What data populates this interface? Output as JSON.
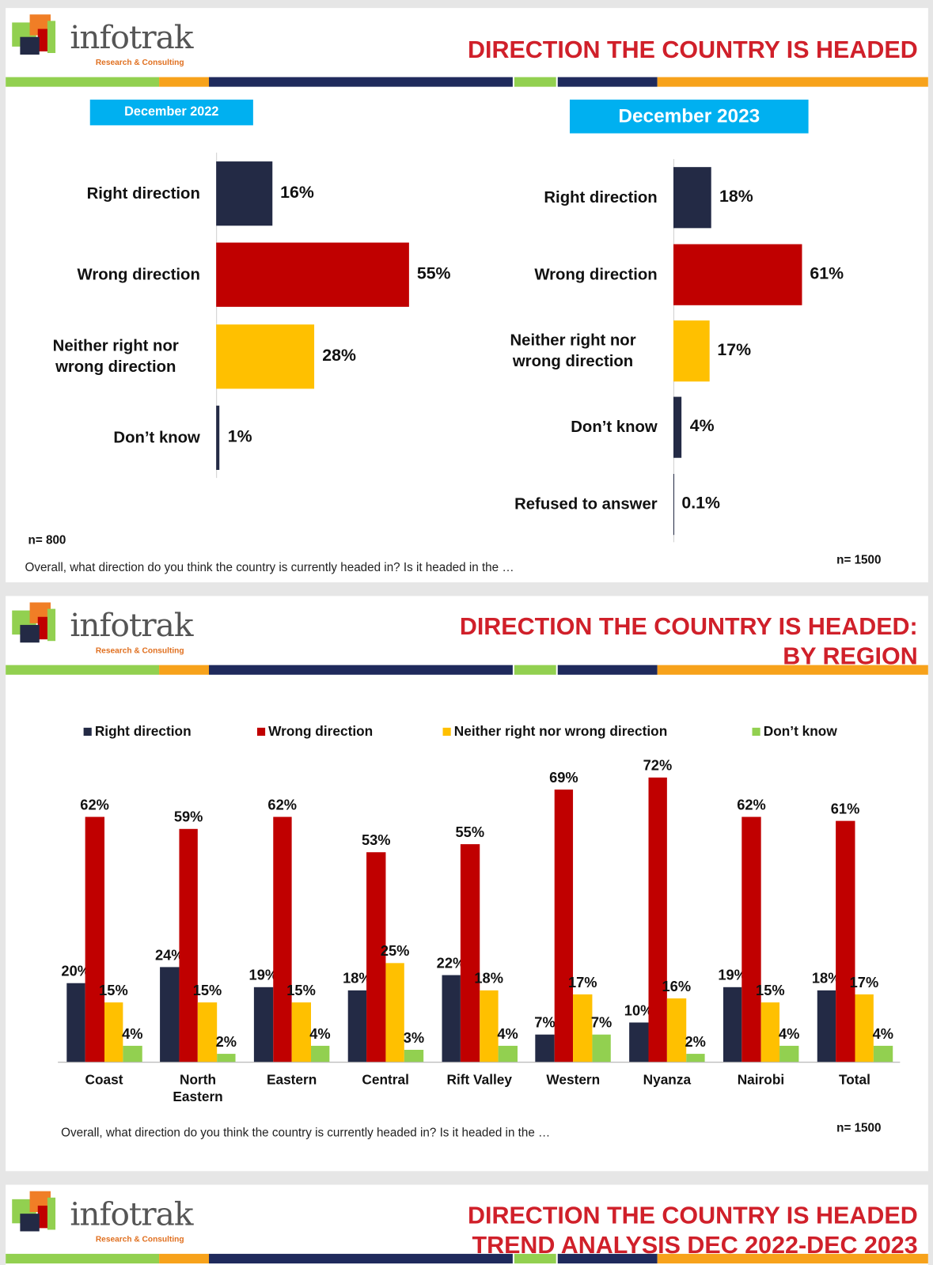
{
  "logo_text": "infotrak",
  "logo_tagline": "Research & Consulting",
  "slides": [
    {
      "title_lines": [
        "DIRECTION THE COUNTRY IS HEADED"
      ]
    },
    {
      "title_lines": [
        "DIRECTION THE COUNTRY IS HEADED:",
        "BY REGION"
      ]
    },
    {
      "title_lines": [
        "DIRECTION THE COUNTRY IS HEADED",
        "TREND ANALYSIS DEC 2022-DEC 2023"
      ]
    }
  ],
  "chart_data": [
    {
      "type": "bar",
      "horizontal": true,
      "subtitle": "December 2022",
      "categories": [
        "Right direction",
        "Wrong direction",
        "Neither right nor wrong direction",
        "Don’t know"
      ],
      "values": [
        16,
        55,
        28,
        1
      ],
      "value_labels": [
        "16%",
        "55%",
        "28%",
        "1%"
      ],
      "colors": [
        "#232a45",
        "#c00000",
        "#ffc000",
        "#232a45"
      ],
      "note": "n= 800",
      "footnote": "Overall, what direction do you think the country is currently headed in? Is it headed in the …"
    },
    {
      "type": "bar",
      "horizontal": true,
      "subtitle": "December 2023",
      "categories": [
        "Right direction",
        "Wrong direction",
        "Neither right nor wrong direction",
        "Don’t know",
        "Refused to answer"
      ],
      "values": [
        18,
        61,
        17,
        4,
        0.1
      ],
      "value_labels": [
        "18%",
        "61%",
        "17%",
        "4%",
        "0.1%"
      ],
      "colors": [
        "#232a45",
        "#c00000",
        "#ffc000",
        "#232a45",
        "#232a45"
      ],
      "note": "n= 1500"
    },
    {
      "type": "bar",
      "horizontal": false,
      "categories": [
        "Coast",
        "North Eastern",
        "Eastern",
        "Central",
        "Rift Valley",
        "Western",
        "Nyanza",
        "Nairobi",
        "Total"
      ],
      "series": [
        {
          "name": "Right direction",
          "color": "#232a45",
          "values": [
            20,
            24,
            19,
            18,
            22,
            7,
            10,
            19,
            18
          ],
          "value_labels": [
            "20%",
            "24%",
            "19%",
            "18%",
            "22%",
            "7%",
            "10%",
            "19%",
            "18%"
          ]
        },
        {
          "name": "Wrong direction",
          "color": "#c00000",
          "values": [
            62,
            59,
            62,
            53,
            55,
            69,
            72,
            62,
            61
          ],
          "value_labels": [
            "62%",
            "59%",
            "62%",
            "53%",
            "55%",
            "69%",
            "72%",
            "62%",
            "61%"
          ]
        },
        {
          "name": "Neither right nor wrong direction",
          "color": "#ffc000",
          "values": [
            15,
            15,
            15,
            25,
            18,
            17,
            16,
            15,
            17
          ],
          "value_labels": [
            "15%",
            "15%",
            "15%",
            "25%",
            "18%",
            "17%",
            "16%",
            "15%",
            "17%"
          ]
        },
        {
          "name": "Don’t know",
          "color": "#92d050",
          "values": [
            4,
            2,
            4,
            3,
            4,
            7,
            2,
            4,
            4
          ],
          "value_labels": [
            "4%",
            "2%",
            "4%",
            "3%",
            "4%",
            "7%",
            "2%",
            "4%",
            "4%"
          ]
        }
      ],
      "legend": "top",
      "note": "n= 1500",
      "footnote": "Overall, what direction do you think the country is currently headed in? Is it headed in the …"
    }
  ]
}
